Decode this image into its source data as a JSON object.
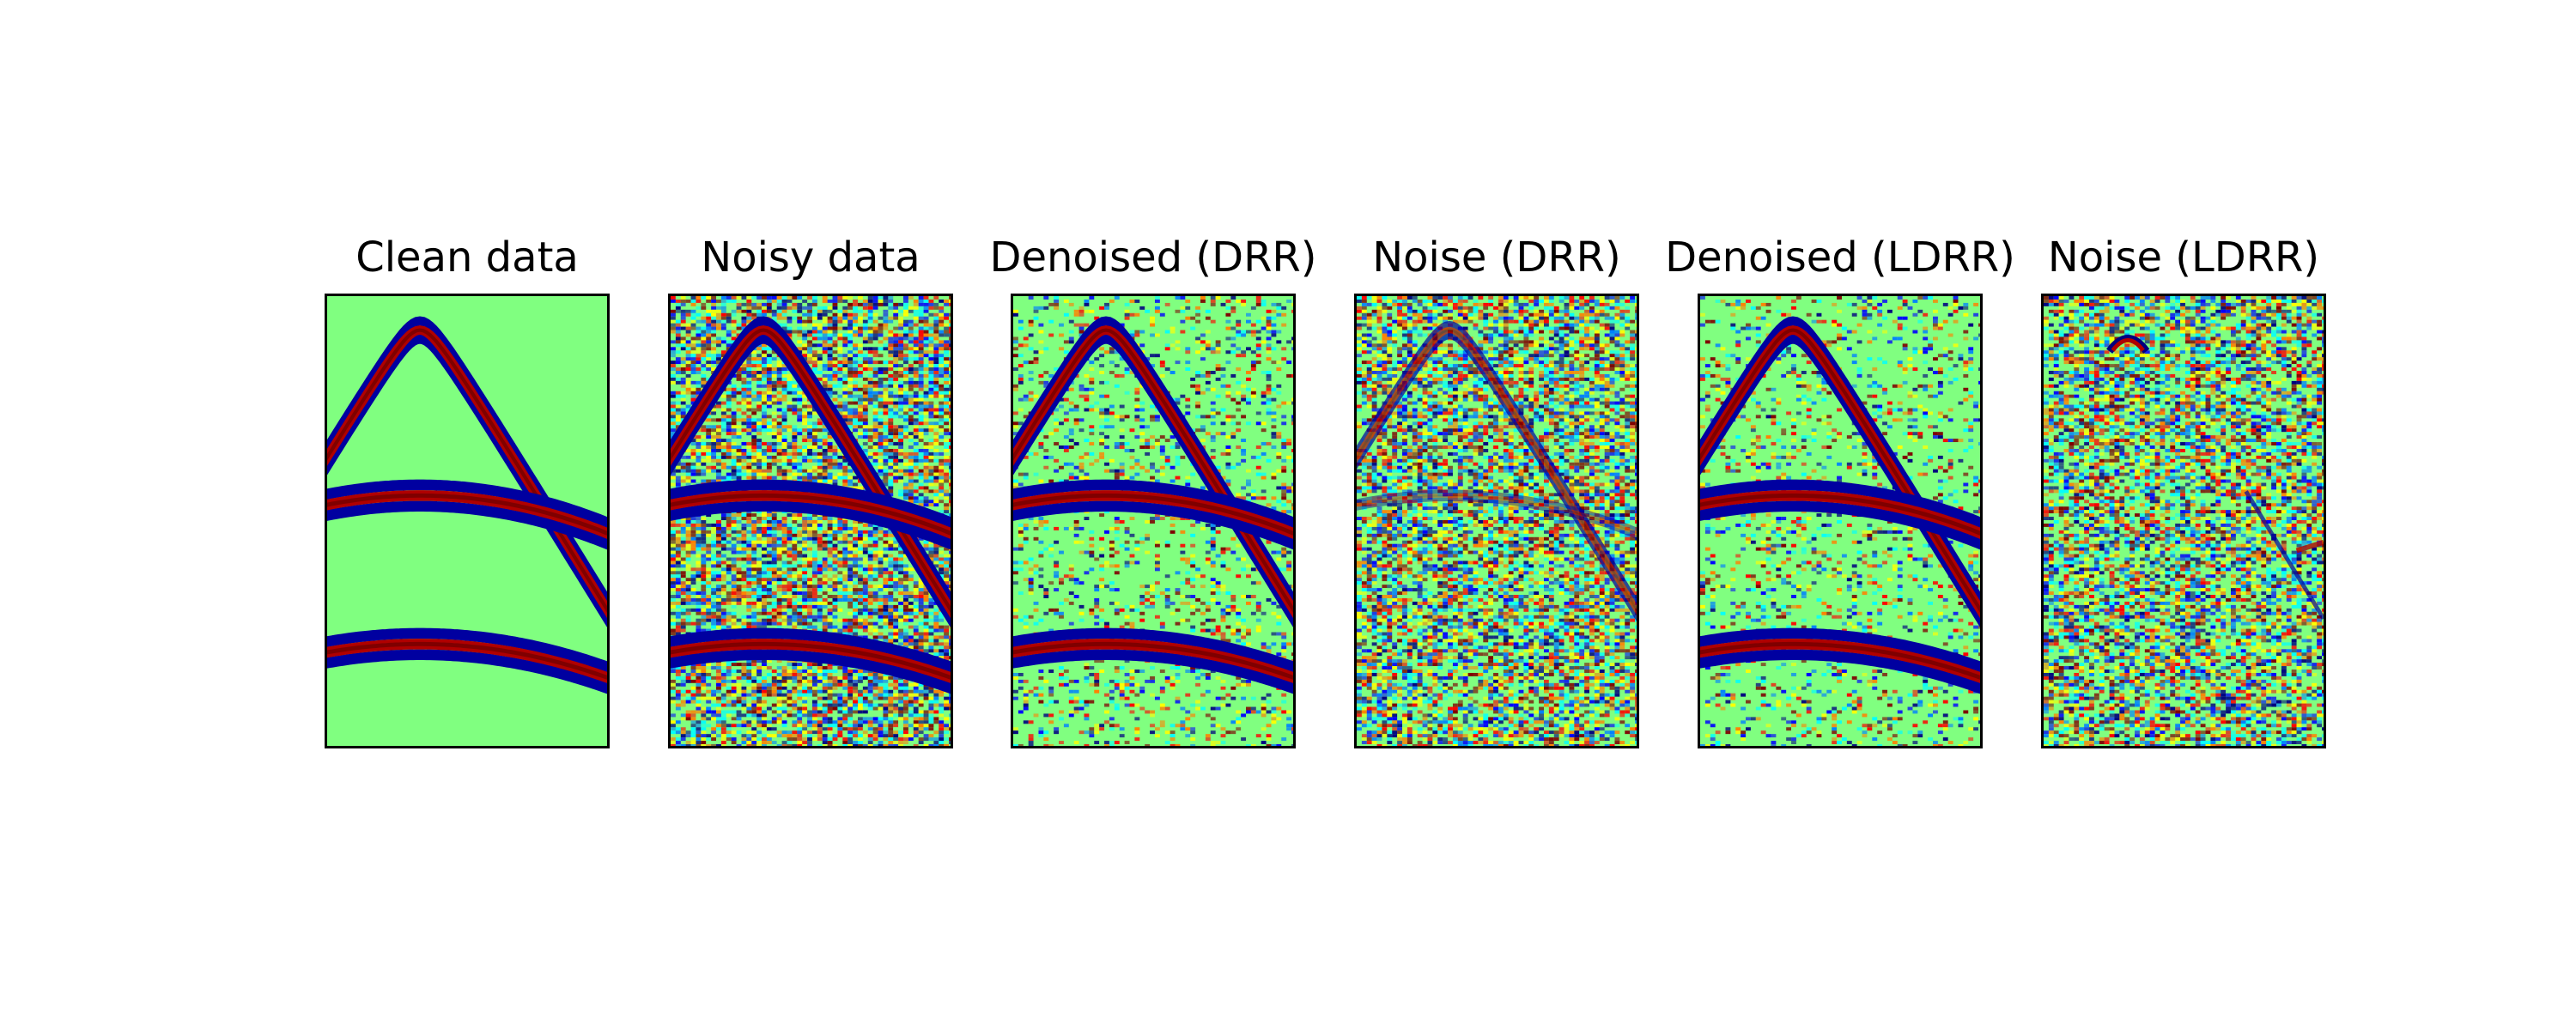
{
  "chart_data": [
    {
      "type": "heatmap",
      "title": "Clean data",
      "colormap": "jet",
      "noise_level": 0,
      "background": "#80ff80",
      "events": [
        "hyperbola",
        "upper-arc",
        "lower-arc"
      ]
    },
    {
      "type": "heatmap",
      "title": "Noisy data",
      "colormap": "jet",
      "noise_level": 1.0,
      "background": "#80ff80",
      "events": [
        "hyperbola",
        "upper-arc",
        "lower-arc"
      ]
    },
    {
      "type": "heatmap",
      "title": "Denoised (DRR)",
      "colormap": "jet",
      "noise_level": 0.35,
      "background": "#80ff80",
      "events": [
        "hyperbola",
        "upper-arc",
        "lower-arc"
      ]
    },
    {
      "type": "heatmap",
      "title": "Noise (DRR)",
      "colormap": "jet",
      "noise_level": 0.9,
      "background": "#80ff80",
      "events": [
        "hyperbola-weak",
        "upper-arc-weak"
      ]
    },
    {
      "type": "heatmap",
      "title": "Denoised (LDRR)",
      "colormap": "jet",
      "noise_level": 0.3,
      "background": "#80ff80",
      "events": [
        "hyperbola",
        "upper-arc",
        "lower-arc"
      ]
    },
    {
      "type": "heatmap",
      "title": "Noise (LDRR)",
      "colormap": "jet",
      "noise_level": 0.85,
      "background": "#80ff80",
      "events": [
        "apex-leak",
        "diagonal-leak"
      ]
    }
  ]
}
